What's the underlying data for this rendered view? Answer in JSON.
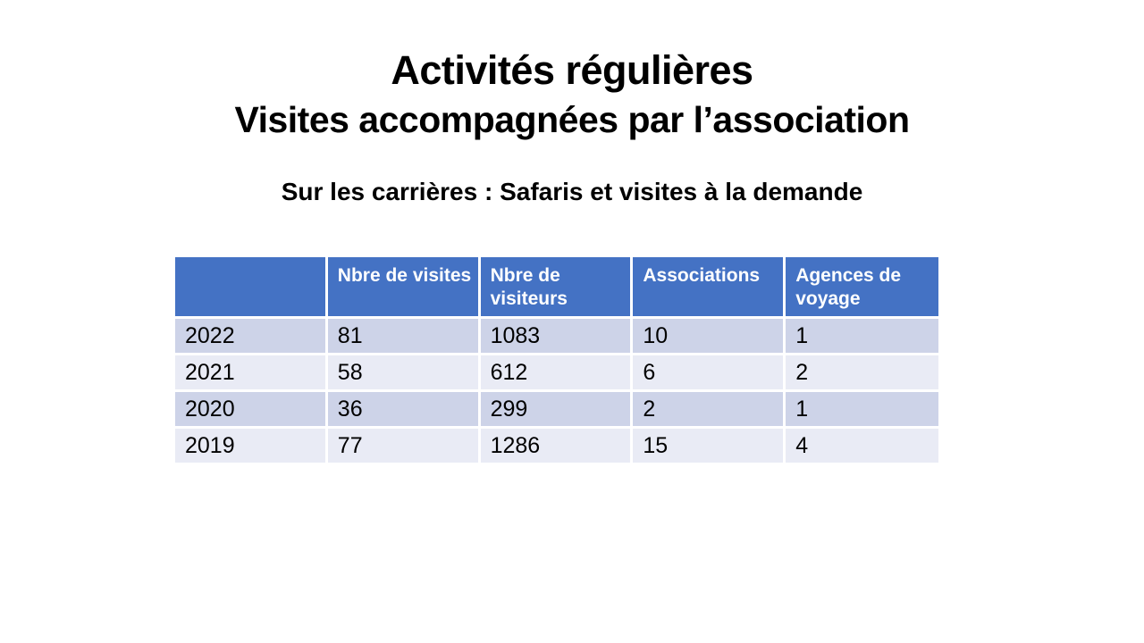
{
  "slide": {
    "title_line1": "Activités régulières",
    "title_line2": "Visites accompagnées par l’association",
    "subtitle": "Sur les carrières : Safaris et visites à la demande"
  },
  "table": {
    "headers": [
      "",
      "Nbre de visites",
      "Nbre de visiteurs",
      "Associations",
      "Agences de voyage"
    ],
    "rows": [
      [
        "2022",
        "81",
        "1083",
        "10",
        "1"
      ],
      [
        "2021",
        "58",
        "612",
        "6",
        "2"
      ],
      [
        "2020",
        "36",
        "299",
        "2",
        "1"
      ],
      [
        "2019",
        "77",
        "1286",
        "15",
        "4"
      ]
    ]
  },
  "colors": {
    "header_bg": "#4472C4",
    "header_text": "#FFFFFF",
    "row_band_dark": "#CDD3E8",
    "row_band_light": "#E9EBF5",
    "title_text": "#000000",
    "background": "#FFFFFF"
  }
}
